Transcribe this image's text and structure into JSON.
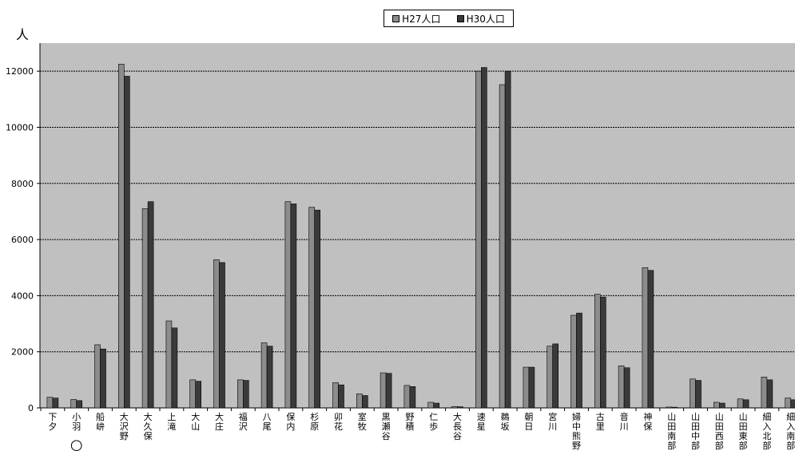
{
  "chart_data": {
    "type": "bar",
    "y_unit": "人",
    "ylim": [
      0,
      13000
    ],
    "yticks": [
      0,
      2000,
      4000,
      6000,
      8000,
      10000,
      12000
    ],
    "grid": true,
    "legend_position": "top",
    "categories": [
      "下夕",
      "小羽",
      "船峅",
      "大沢野",
      "大久保",
      "上滝",
      "大山",
      "大庄",
      "福沢",
      "八尾",
      "保内",
      "杉原",
      "卯花",
      "室牧",
      "黒瀬谷",
      "野積",
      "仁歩",
      "大長谷",
      "速星",
      "鵜坂",
      "朝日",
      "宮川",
      "婦中熊野",
      "古里",
      "音川",
      "神保",
      "山田南部",
      "山田中部",
      "山田西部",
      "山田東部",
      "細入北部",
      "細入南部"
    ],
    "series": [
      {
        "name": "H27人口",
        "color": "#8c8c8c",
        "values": [
          380,
          300,
          2250,
          12250,
          7100,
          3100,
          1000,
          5280,
          1000,
          2320,
          7350,
          7150,
          900,
          500,
          1250,
          800,
          200,
          50,
          12000,
          11520,
          1450,
          2200,
          3300,
          4050,
          1500,
          5000,
          30,
          1030,
          200,
          320,
          1100,
          350
        ]
      },
      {
        "name": "H30人口",
        "color": "#3a3a3a",
        "values": [
          350,
          260,
          2100,
          11820,
          7350,
          2850,
          950,
          5180,
          980,
          2200,
          7270,
          7050,
          820,
          440,
          1230,
          760,
          170,
          40,
          12130,
          12000,
          1450,
          2280,
          3380,
          3950,
          1430,
          4900,
          25,
          980,
          170,
          290,
          1000,
          290
        ]
      }
    ],
    "annotations": [
      "○"
    ],
    "colors": {
      "plot_bg": "#c0c0c0",
      "grid": "#000000"
    }
  }
}
